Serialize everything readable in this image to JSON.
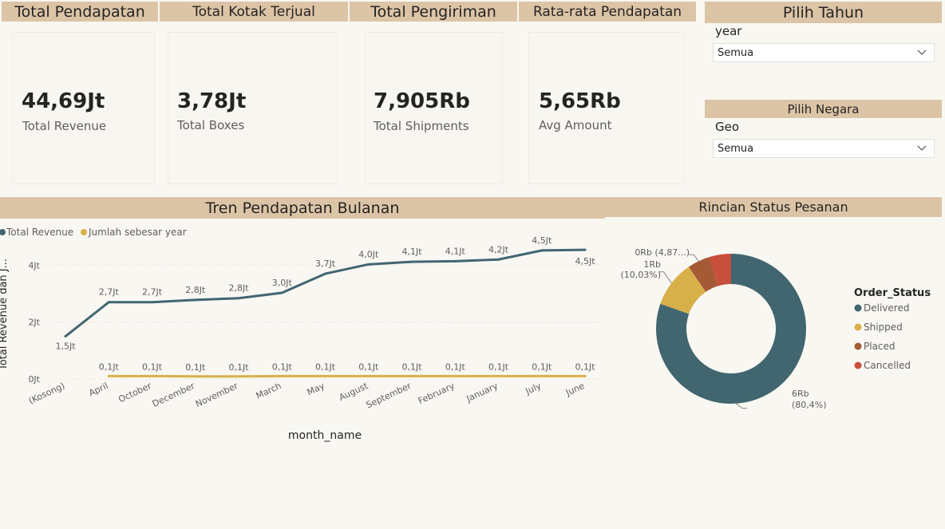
{
  "headers": {
    "total_pendapatan": "Total Pendapatan",
    "total_kotak": "Total Kotak Terjual",
    "total_pengiriman": "Total Pengiriman",
    "rata_rata": "Rata-rata Pendapatan",
    "pilih_tahun": "Pilih Tahun",
    "pilih_negara": "Pilih Negara",
    "tren": "Tren Pendapatan Bulanan",
    "rincian": "Rincian Status Pesanan"
  },
  "kpis": [
    {
      "value": "44,69Jt",
      "label": "Total Revenue"
    },
    {
      "value": "3,78Jt",
      "label": "Total Boxes"
    },
    {
      "value": "7,905Rb",
      "label": "Total Shipments"
    },
    {
      "value": "5,65Rb",
      "label": "Avg Amount"
    }
  ],
  "slicers": {
    "year": {
      "label": "year",
      "value": "Semua"
    },
    "geo": {
      "label": "Geo",
      "value": "Semua"
    }
  },
  "colors": {
    "header_band": "#dcc4a6",
    "revenue_line": "#41666f",
    "year_line": "#d8b04a",
    "delivered": "#41666f",
    "shipped": "#d8b04a",
    "placed": "#a55a36",
    "cancelled": "#c84f3c"
  },
  "chart_data": [
    {
      "type": "line",
      "x": [
        "(Kosong)",
        "April",
        "October",
        "December",
        "November",
        "March",
        "May",
        "August",
        "September",
        "February",
        "January",
        "July",
        "June"
      ],
      "xlabel": "month_name",
      "ylabel": "Total Revenue dan J...",
      "y_ticks": [
        "0Jt",
        "2Jt",
        "4Jt"
      ],
      "ylim": [
        0,
        4.6
      ],
      "grid": true,
      "legend_position": "top-left",
      "series": [
        {
          "name": "Total Revenue",
          "values": [
            1.5,
            2.7,
            2.7,
            2.78,
            2.84,
            3.03,
            3.7,
            4.03,
            4.12,
            4.14,
            4.2,
            4.52,
            4.54
          ],
          "labels": [
            "1,5Jt",
            "2,7Jt",
            "2,7Jt",
            "2,8Jt",
            "2,8Jt",
            "3,0Jt",
            "3,7Jt",
            "4,0Jt",
            "4,1Jt",
            "4,1Jt",
            "4,2Jt",
            "4,5Jt",
            "4,5Jt"
          ]
        },
        {
          "name": "Jumlah sebesar year",
          "values": [
            null,
            0.1,
            0.1,
            0.09,
            0.09,
            0.1,
            0.1,
            0.1,
            0.1,
            0.1,
            0.1,
            0.1,
            0.1
          ],
          "labels": [
            "",
            "0,1Jt",
            "0,1Jt",
            "0,1Jt",
            "0,1Jt",
            "0,1Jt",
            "0,1Jt",
            "0,1Jt",
            "0,1Jt",
            "0,1Jt",
            "0,1Jt",
            "0,1Jt",
            "0,1Jt"
          ]
        }
      ]
    },
    {
      "type": "pie",
      "legend_title": "Order_Status",
      "legend_position": "right",
      "categories": [
        "Delivered",
        "Shipped",
        "Placed",
        "Cancelled"
      ],
      "values": [
        80.4,
        10.03,
        4.87,
        4.7
      ],
      "data_labels": [
        [
          "6Rb",
          "(80,4%)"
        ],
        [
          "1Rb",
          "(10,03%)"
        ],
        [
          "0Rb (4,87...)"
        ]
      ]
    }
  ]
}
